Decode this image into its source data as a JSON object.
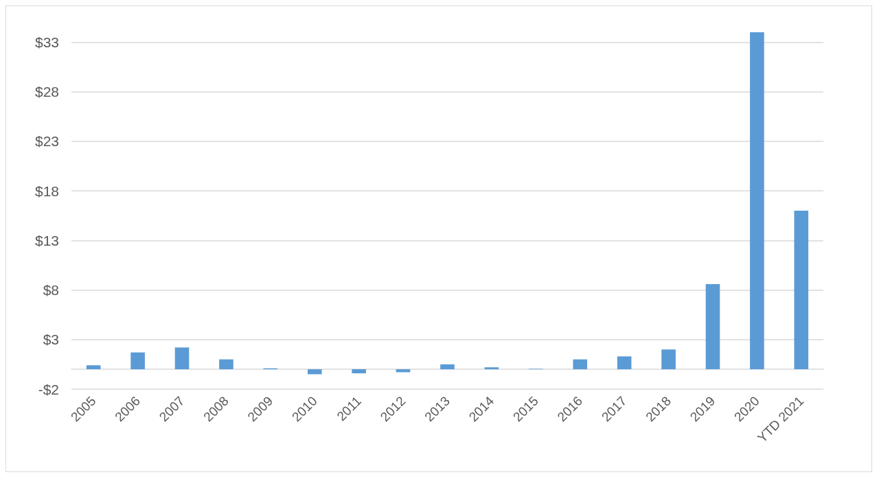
{
  "chart_data": {
    "type": "bar",
    "categories": [
      "2005",
      "2006",
      "2007",
      "2008",
      "2009",
      "2010",
      "2011",
      "2012",
      "2013",
      "2014",
      "2015",
      "2016",
      "2017",
      "2018",
      "2019",
      "2020",
      "YTD 2021"
    ],
    "values": [
      0.4,
      1.7,
      2.2,
      1.0,
      0.1,
      -0.5,
      -0.4,
      -0.3,
      0.5,
      0.2,
      0.05,
      1.0,
      1.3,
      2.0,
      8.6,
      34.0,
      16.0
    ],
    "color": "#5b9bd5",
    "ylim": [
      -2,
      34
    ],
    "yticks": [
      {
        "value": -2,
        "label": "-$2"
      },
      {
        "value": 3,
        "label": "$3"
      },
      {
        "value": 8,
        "label": "$8"
      },
      {
        "value": 13,
        "label": "$13"
      },
      {
        "value": 18,
        "label": "$18"
      },
      {
        "value": 23,
        "label": "$23"
      },
      {
        "value": 28,
        "label": "$28"
      },
      {
        "value": 33,
        "label": "$33"
      }
    ],
    "grid": "y"
  }
}
